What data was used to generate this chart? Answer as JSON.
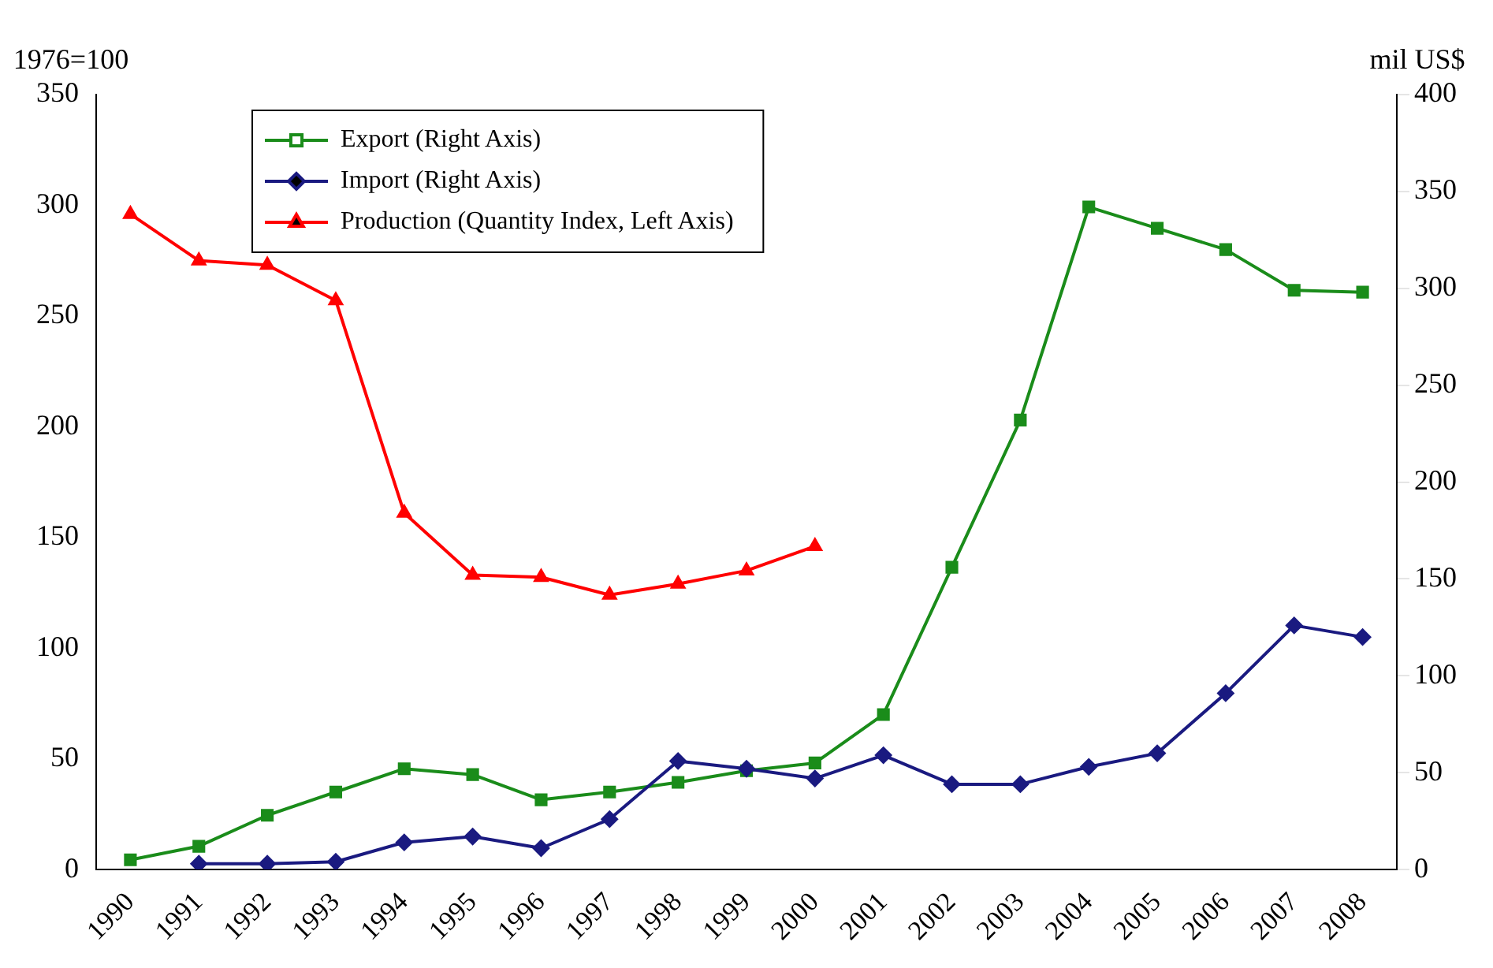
{
  "chart_data": {
    "type": "line",
    "ylabel": "1976=100",
    "y2label": "mil US$",
    "categories": [
      "1990",
      "1991",
      "1992",
      "1993",
      "1994",
      "1995",
      "1996",
      "1997",
      "1998",
      "1999",
      "2000",
      "2001",
      "2002",
      "2003",
      "2004",
      "2005",
      "2006",
      "2007",
      "2008"
    ],
    "series": [
      {
        "name": "Export (Right Axis)",
        "color": "#1a8c1a",
        "axis": "y2",
        "marker": "square",
        "values": [
          5,
          12,
          28,
          40,
          52,
          49,
          36,
          40,
          45,
          51,
          55,
          80,
          156,
          232,
          342,
          331,
          320,
          299,
          298
        ]
      },
      {
        "name": "Import (Right Axis)",
        "color": "#1a1a80",
        "axis": "y2",
        "marker": "diamond",
        "values": [
          null,
          3,
          3,
          4,
          14,
          17,
          11,
          26,
          56,
          52,
          47,
          59,
          44,
          44,
          53,
          60,
          91,
          126,
          120
        ]
      },
      {
        "name": "Production (Quantity Index, Left Axis)",
        "color": "#ff0000",
        "marker": "triangle",
        "values": [
          296,
          275,
          273,
          257,
          161,
          133,
          132,
          124,
          129,
          135,
          146,
          null,
          null,
          null,
          null,
          null,
          null,
          null,
          null
        ]
      }
    ],
    "ylim": [
      0,
      350
    ],
    "yticks": [
      0,
      50,
      100,
      150,
      200,
      250,
      300,
      350
    ],
    "y2lim": [
      0,
      400
    ],
    "y2ticks": [
      0,
      50,
      100,
      150,
      200,
      250,
      300,
      350,
      400
    ],
    "grid": false,
    "legend": "top"
  }
}
